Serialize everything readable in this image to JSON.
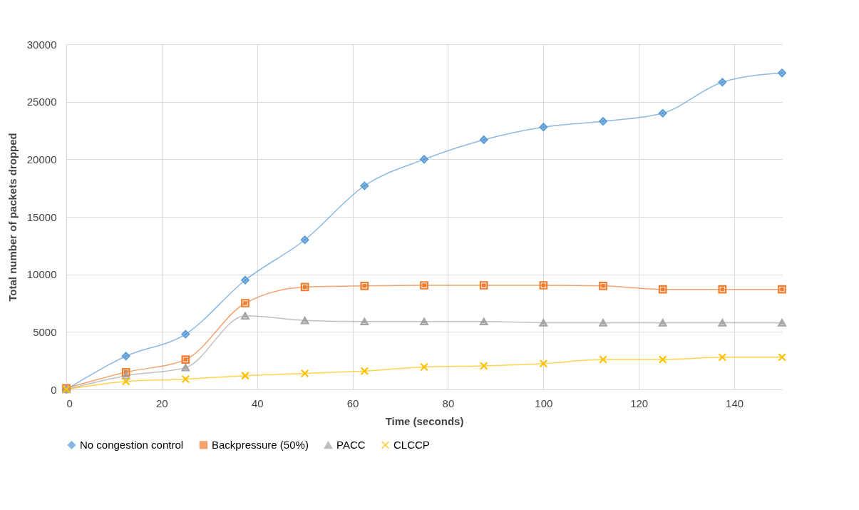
{
  "chart_data": {
    "type": "line",
    "xlabel": "Time (seconds)",
    "ylabel": "Total number of packets dropped",
    "x": [
      0,
      12.5,
      25,
      37.5,
      50,
      62.5,
      75,
      87.5,
      100,
      112.5,
      125,
      137.5,
      150
    ],
    "xlim": [
      0,
      150
    ],
    "xticks": [
      0,
      20,
      40,
      60,
      80,
      100,
      120,
      140
    ],
    "ylim": [
      0,
      30000
    ],
    "yticks": [
      0,
      5000,
      10000,
      15000,
      20000,
      25000,
      30000
    ],
    "grid": true,
    "legend": "bottom",
    "series": [
      {
        "name": "No congestion control",
        "color": "#5b9bd5",
        "marker": "diamond",
        "values": [
          0,
          2900,
          4800,
          9500,
          13000,
          17700,
          20000,
          21700,
          22800,
          23300,
          24000,
          26700,
          27500
        ]
      },
      {
        "name": "Backpressure (50%)",
        "color": "#ed7d31",
        "marker": "square",
        "values": [
          100,
          1500,
          2600,
          7500,
          8900,
          9000,
          9050,
          9050,
          9050,
          9000,
          8700,
          8700,
          8700
        ]
      },
      {
        "name": "PACC",
        "color": "#a5a5a5",
        "marker": "triangle",
        "values": [
          0,
          1200,
          1900,
          6400,
          6000,
          5900,
          5900,
          5900,
          5800,
          5800,
          5800,
          5800,
          5800
        ]
      },
      {
        "name": "CLCCP",
        "color": "#ffc000",
        "marker": "cross",
        "values": [
          0,
          700,
          900,
          1200,
          1400,
          1600,
          1950,
          2050,
          2250,
          2600,
          2600,
          2800,
          2800
        ]
      }
    ]
  }
}
